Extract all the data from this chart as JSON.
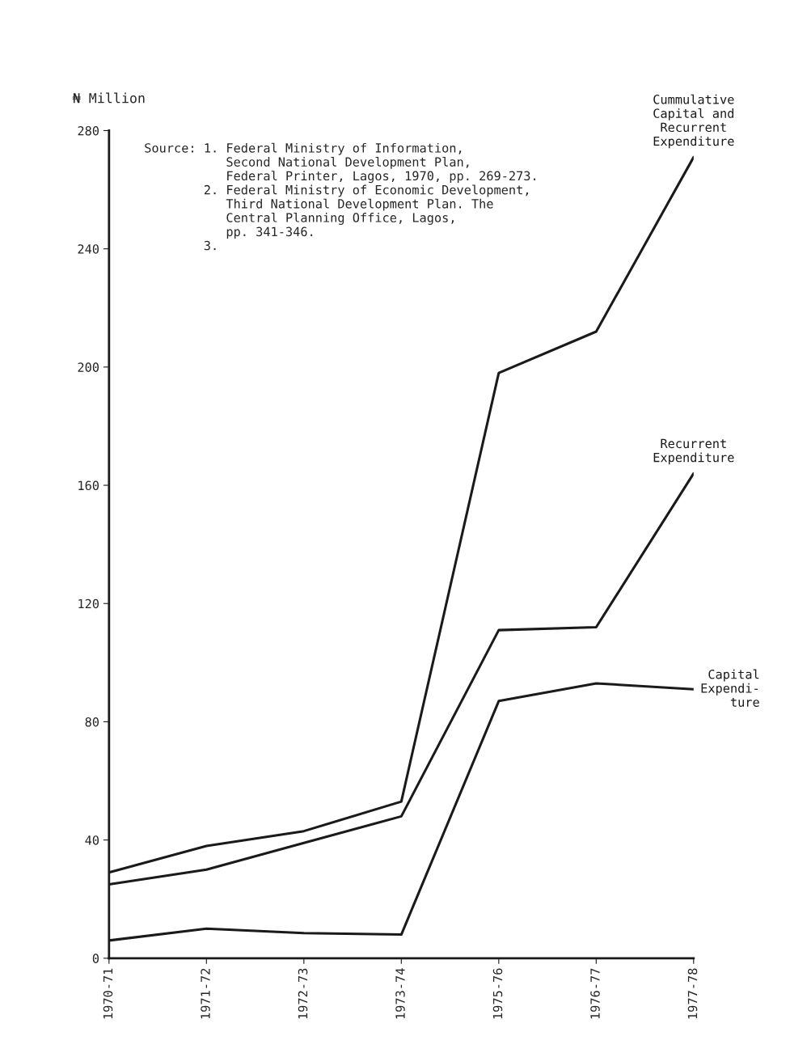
{
  "chart_data": {
    "type": "line",
    "ylabel": "₦ Million",
    "categories": [
      "1970-71",
      "1971-72",
      "1972-73",
      "1973-74",
      "1975-76",
      "1976-77",
      "1977-78"
    ],
    "series": [
      {
        "name": "Cummulative\nCapital and\nRecurrent\nExpenditure",
        "color": "#1a1a1a",
        "values": [
          29,
          38,
          43,
          53,
          198,
          212,
          271
        ]
      },
      {
        "name": "Recurrent\nExpenditure",
        "color": "#1a1a1a",
        "values": [
          25,
          30,
          39,
          48,
          111,
          112,
          164
        ]
      },
      {
        "name": "Capital\nExpendi-\nture",
        "color": "#1a1a1a",
        "values": [
          6,
          10,
          8.5,
          8,
          87,
          93,
          91
        ]
      }
    ],
    "ylim": [
      0,
      280
    ],
    "yticks": [
      0,
      40,
      80,
      120,
      160,
      200,
      240,
      280
    ],
    "grid": false,
    "legend": false,
    "marker": "none",
    "line_style": "solid",
    "annotations": [
      "Source: 1. Federal Ministry of Information,\n           Second National Development Plan,\n           Federal Printer, Lagos, 1970, pp. 269-273.\n        2. Federal Ministry of Economic Development,\n           Third National Development Plan. The\n           Central Planning Office, Lagos,\n           pp. 341-346.\n        3."
    ]
  }
}
